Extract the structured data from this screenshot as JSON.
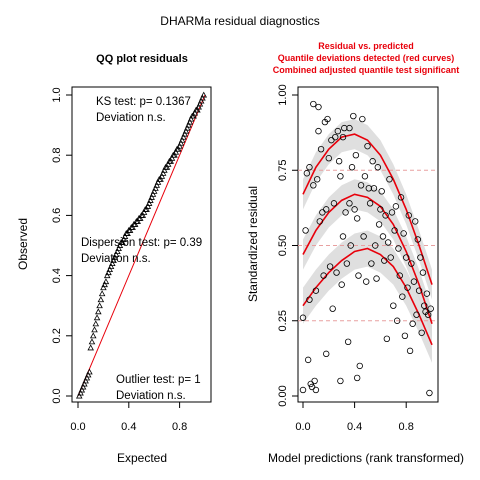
{
  "figure": {
    "title": "DHARMa residual diagnostics"
  },
  "qq_panel": {
    "title": "QQ plot residuals",
    "ks_label": "KS test: p= 0.1367",
    "ks_deviation": "Deviation  n.s.",
    "dispersion_label": "Dispersion test: p= 0.39",
    "dispersion_deviation": "Deviation  n.s.",
    "outlier_label": "Outlier test: p= 1",
    "outlier_deviation": "Deviation  n.s.",
    "colors": {
      "points": "#000000",
      "reference_line": "#e8000b"
    }
  },
  "residual_panel": {
    "title_lines": [
      "Residual vs. predicted",
      "Quantile deviations detected (red curves)",
      "Combined adjusted quantile test significant"
    ],
    "colors": {
      "title": "#e8000b",
      "curves": "#e8000b",
      "bands": "#d9d9d9",
      "reference_lines": "#e8a0a0"
    }
  },
  "chart_data": [
    {
      "type": "scatter",
      "title": "QQ plot residuals",
      "xlabel": "Expected",
      "ylabel": "Observed",
      "xlim": [
        0,
        1
      ],
      "ylim": [
        0,
        1
      ],
      "xticks": [
        0.0,
        0.4,
        0.8
      ],
      "xtick_labels": [
        "0.0",
        "0.4",
        "0.8"
      ],
      "yticks": [
        0.0,
        0.2,
        0.4,
        0.6,
        0.8,
        1.0
      ],
      "ytick_labels": [
        "0.0",
        "0.2",
        "0.4",
        "0.6",
        "0.8",
        "1.0"
      ],
      "reference_line": {
        "intercept": 0,
        "slope": 1
      },
      "points": [
        [
          0.01,
          0.0
        ],
        [
          0.02,
          0.01
        ],
        [
          0.03,
          0.02
        ],
        [
          0.04,
          0.03
        ],
        [
          0.05,
          0.04
        ],
        [
          0.06,
          0.05
        ],
        [
          0.07,
          0.06
        ],
        [
          0.08,
          0.07
        ],
        [
          0.09,
          0.08
        ],
        [
          0.1,
          0.16
        ],
        [
          0.11,
          0.18
        ],
        [
          0.12,
          0.2
        ],
        [
          0.13,
          0.22
        ],
        [
          0.14,
          0.24
        ],
        [
          0.15,
          0.26
        ],
        [
          0.16,
          0.28
        ],
        [
          0.17,
          0.3
        ],
        [
          0.18,
          0.32
        ],
        [
          0.19,
          0.34
        ],
        [
          0.2,
          0.36
        ],
        [
          0.21,
          0.37
        ],
        [
          0.22,
          0.38
        ],
        [
          0.23,
          0.4
        ],
        [
          0.24,
          0.41
        ],
        [
          0.25,
          0.42
        ],
        [
          0.26,
          0.43
        ],
        [
          0.27,
          0.44
        ],
        [
          0.28,
          0.45
        ],
        [
          0.29,
          0.46
        ],
        [
          0.3,
          0.47
        ],
        [
          0.31,
          0.48
        ],
        [
          0.32,
          0.49
        ],
        [
          0.33,
          0.5
        ],
        [
          0.34,
          0.51
        ],
        [
          0.35,
          0.51
        ],
        [
          0.36,
          0.52
        ],
        [
          0.37,
          0.53
        ],
        [
          0.38,
          0.54
        ],
        [
          0.39,
          0.54
        ],
        [
          0.4,
          0.55
        ],
        [
          0.41,
          0.55
        ],
        [
          0.42,
          0.56
        ],
        [
          0.43,
          0.56
        ],
        [
          0.44,
          0.57
        ],
        [
          0.45,
          0.57
        ],
        [
          0.46,
          0.58
        ],
        [
          0.47,
          0.58
        ],
        [
          0.48,
          0.59
        ],
        [
          0.49,
          0.59
        ],
        [
          0.5,
          0.6
        ],
        [
          0.51,
          0.6
        ],
        [
          0.52,
          0.61
        ],
        [
          0.53,
          0.62
        ],
        [
          0.54,
          0.62
        ],
        [
          0.55,
          0.63
        ],
        [
          0.56,
          0.64
        ],
        [
          0.57,
          0.65
        ],
        [
          0.58,
          0.66
        ],
        [
          0.59,
          0.67
        ],
        [
          0.6,
          0.68
        ],
        [
          0.61,
          0.69
        ],
        [
          0.62,
          0.7
        ],
        [
          0.63,
          0.71
        ],
        [
          0.64,
          0.72
        ],
        [
          0.65,
          0.72
        ],
        [
          0.66,
          0.73
        ],
        [
          0.67,
          0.74
        ],
        [
          0.68,
          0.75
        ],
        [
          0.69,
          0.76
        ],
        [
          0.7,
          0.76
        ],
        [
          0.71,
          0.77
        ],
        [
          0.72,
          0.78
        ],
        [
          0.73,
          0.78
        ],
        [
          0.74,
          0.79
        ],
        [
          0.75,
          0.8
        ],
        [
          0.76,
          0.8
        ],
        [
          0.77,
          0.81
        ],
        [
          0.78,
          0.82
        ],
        [
          0.79,
          0.82
        ],
        [
          0.8,
          0.83
        ],
        [
          0.81,
          0.84
        ],
        [
          0.82,
          0.85
        ],
        [
          0.83,
          0.86
        ],
        [
          0.84,
          0.87
        ],
        [
          0.85,
          0.88
        ],
        [
          0.86,
          0.89
        ],
        [
          0.87,
          0.9
        ],
        [
          0.88,
          0.91
        ],
        [
          0.89,
          0.92
        ],
        [
          0.9,
          0.93
        ],
        [
          0.91,
          0.93
        ],
        [
          0.92,
          0.94
        ],
        [
          0.93,
          0.95
        ],
        [
          0.94,
          0.95
        ],
        [
          0.95,
          0.96
        ],
        [
          0.96,
          0.97
        ],
        [
          0.97,
          0.98
        ],
        [
          0.98,
          0.99
        ],
        [
          0.99,
          1.0
        ]
      ]
    },
    {
      "type": "scatter",
      "xlabel": "Model predictions (rank transformed)",
      "ylabel": "Standardized residual",
      "xlim": [
        0,
        1
      ],
      "ylim": [
        0,
        1
      ],
      "xticks": [
        0.0,
        0.4,
        0.8
      ],
      "xtick_labels": [
        "0.0",
        "0.4",
        "0.8"
      ],
      "yticks": [
        0.0,
        0.25,
        0.5,
        0.75,
        1.0
      ],
      "ytick_labels": [
        "0.00",
        "0.25",
        "0.50",
        "0.75",
        "1.00"
      ],
      "reference_lines": [
        0.25,
        0.5,
        0.75
      ],
      "quantile_curves": [
        {
          "quantile": 0.75,
          "x": [
            0.0,
            0.1,
            0.2,
            0.3,
            0.4,
            0.5,
            0.6,
            0.7,
            0.8,
            0.9,
            1.0
          ],
          "y": [
            0.67,
            0.76,
            0.82,
            0.86,
            0.87,
            0.85,
            0.8,
            0.72,
            0.62,
            0.5,
            0.37
          ],
          "band_width": 0.05
        },
        {
          "quantile": 0.5,
          "x": [
            0.0,
            0.1,
            0.2,
            0.3,
            0.4,
            0.5,
            0.6,
            0.7,
            0.8,
            0.9,
            1.0
          ],
          "y": [
            0.47,
            0.55,
            0.61,
            0.65,
            0.67,
            0.66,
            0.63,
            0.57,
            0.48,
            0.37,
            0.24
          ],
          "band_width": 0.05
        },
        {
          "quantile": 0.25,
          "x": [
            0.0,
            0.1,
            0.2,
            0.3,
            0.4,
            0.5,
            0.6,
            0.7,
            0.8,
            0.9,
            1.0
          ],
          "y": [
            0.3,
            0.36,
            0.41,
            0.45,
            0.48,
            0.49,
            0.47,
            0.43,
            0.36,
            0.27,
            0.17
          ],
          "band_width": 0.06
        }
      ],
      "points": [
        [
          0.0,
          0.26
        ],
        [
          0.0,
          0.02
        ],
        [
          0.02,
          0.55
        ],
        [
          0.03,
          0.74
        ],
        [
          0.04,
          0.12
        ],
        [
          0.05,
          0.76
        ],
        [
          0.05,
          0.32
        ],
        [
          0.06,
          0.04
        ],
        [
          0.07,
          0.03
        ],
        [
          0.08,
          0.97
        ],
        [
          0.08,
          0.7
        ],
        [
          0.09,
          0.05
        ],
        [
          0.1,
          0.35
        ],
        [
          0.1,
          0.02
        ],
        [
          0.11,
          0.72
        ],
        [
          0.12,
          0.88
        ],
        [
          0.12,
          0.96
        ],
        [
          0.13,
          0.58
        ],
        [
          0.14,
          0.82
        ],
        [
          0.15,
          0.61
        ],
        [
          0.16,
          0.4
        ],
        [
          0.17,
          0.91
        ],
        [
          0.18,
          0.62
        ],
        [
          0.18,
          0.14
        ],
        [
          0.19,
          0.92
        ],
        [
          0.2,
          0.79
        ],
        [
          0.21,
          0.43
        ],
        [
          0.22,
          0.85
        ],
        [
          0.23,
          0.29
        ],
        [
          0.24,
          0.64
        ],
        [
          0.25,
          0.86
        ],
        [
          0.26,
          0.41
        ],
        [
          0.27,
          0.88
        ],
        [
          0.28,
          0.78
        ],
        [
          0.29,
          0.73
        ],
        [
          0.29,
          0.05
        ],
        [
          0.3,
          0.37
        ],
        [
          0.31,
          0.53
        ],
        [
          0.31,
          0.86
        ],
        [
          0.32,
          0.89
        ],
        [
          0.33,
          0.61
        ],
        [
          0.34,
          0.44
        ],
        [
          0.35,
          0.18
        ],
        [
          0.36,
          0.64
        ],
        [
          0.36,
          0.89
        ],
        [
          0.37,
          0.5
        ],
        [
          0.38,
          0.76
        ],
        [
          0.39,
          0.93
        ],
        [
          0.4,
          0.62
        ],
        [
          0.41,
          0.8
        ],
        [
          0.42,
          0.06
        ],
        [
          0.42,
          0.59
        ],
        [
          0.43,
          0.4
        ],
        [
          0.44,
          0.1
        ],
        [
          0.45,
          0.7
        ],
        [
          0.46,
          0.92
        ],
        [
          0.47,
          0.53
        ],
        [
          0.48,
          0.73
        ],
        [
          0.49,
          0.38
        ],
        [
          0.5,
          0.83
        ],
        [
          0.51,
          0.69
        ],
        [
          0.52,
          0.64
        ],
        [
          0.53,
          0.44
        ],
        [
          0.54,
          0.78
        ],
        [
          0.55,
          0.69
        ],
        [
          0.56,
          0.5
        ],
        [
          0.57,
          0.39
        ],
        [
          0.58,
          0.76
        ],
        [
          0.59,
          0.57
        ],
        [
          0.6,
          0.62
        ],
        [
          0.61,
          0.68
        ],
        [
          0.62,
          0.53
        ],
        [
          0.63,
          0.45
        ],
        [
          0.64,
          0.6
        ],
        [
          0.65,
          0.19
        ],
        [
          0.66,
          0.51
        ],
        [
          0.67,
          0.72
        ],
        [
          0.68,
          0.46
        ],
        [
          0.69,
          0.61
        ],
        [
          0.7,
          0.3
        ],
        [
          0.71,
          0.55
        ],
        [
          0.72,
          0.63
        ],
        [
          0.73,
          0.25
        ],
        [
          0.74,
          0.49
        ],
        [
          0.75,
          0.4
        ],
        [
          0.76,
          0.66
        ],
        [
          0.77,
          0.33
        ],
        [
          0.78,
          0.54
        ],
        [
          0.79,
          0.2
        ],
        [
          0.8,
          0.46
        ],
        [
          0.81,
          0.36
        ],
        [
          0.82,
          0.6
        ],
        [
          0.83,
          0.15
        ],
        [
          0.84,
          0.44
        ],
        [
          0.85,
          0.24
        ],
        [
          0.86,
          0.38
        ],
        [
          0.87,
          0.58
        ],
        [
          0.88,
          0.27
        ],
        [
          0.89,
          0.52
        ],
        [
          0.9,
          0.35
        ],
        [
          0.91,
          0.46
        ],
        [
          0.92,
          0.21
        ],
        [
          0.93,
          0.41
        ],
        [
          0.94,
          0.3
        ],
        [
          0.95,
          0.28
        ],
        [
          0.96,
          0.34
        ],
        [
          0.97,
          0.27
        ],
        [
          0.98,
          0.01
        ],
        [
          0.99,
          0.29
        ]
      ]
    }
  ]
}
